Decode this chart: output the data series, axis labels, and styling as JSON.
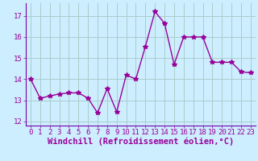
{
  "x": [
    0,
    1,
    2,
    3,
    4,
    5,
    6,
    7,
    8,
    9,
    10,
    11,
    12,
    13,
    14,
    15,
    16,
    17,
    18,
    19,
    20,
    21,
    22,
    23
  ],
  "y": [
    14.0,
    13.1,
    13.2,
    13.3,
    13.35,
    13.35,
    13.1,
    12.4,
    13.55,
    12.45,
    14.2,
    14.0,
    15.55,
    17.2,
    16.65,
    14.7,
    16.0,
    16.0,
    16.0,
    14.8,
    14.8,
    14.8,
    14.35,
    14.3
  ],
  "line_color": "#990099",
  "marker": "*",
  "marker_size": 4,
  "bg_color": "#cceeff",
  "grid_color": "#aacccc",
  "xlabel": "Windchill (Refroidissement éolien,°C)",
  "ylim": [
    11.8,
    17.6
  ],
  "xlim": [
    -0.5,
    23.5
  ],
  "yticks": [
    12,
    13,
    14,
    15,
    16,
    17
  ],
  "xticks": [
    0,
    1,
    2,
    3,
    4,
    5,
    6,
    7,
    8,
    9,
    10,
    11,
    12,
    13,
    14,
    15,
    16,
    17,
    18,
    19,
    20,
    21,
    22,
    23
  ],
  "tick_label_color": "#990099",
  "tick_label_fontsize": 6.5,
  "xlabel_fontsize": 7.5,
  "xlabel_color": "#990099",
  "line_width": 1.0
}
